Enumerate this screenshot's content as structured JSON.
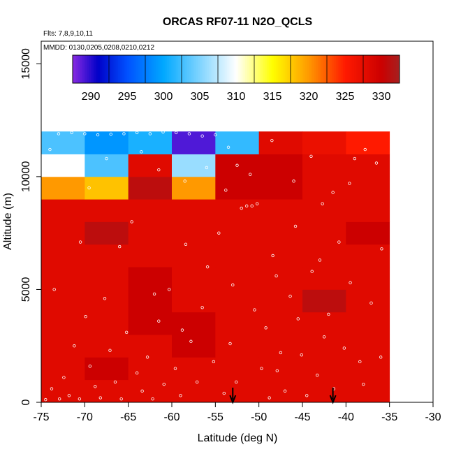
{
  "chart_data": {
    "type": "heatmap",
    "title": "ORCAS RF07-11 N2O_QCLS",
    "annotations": {
      "flights": "Flts: 7,8,9,10,11",
      "dates": "MMDD: 0130,0205,0208,0210,0212"
    },
    "xlabel": "Latitude (deg N)",
    "ylabel": "Altitude (m)",
    "xlim": [
      -75,
      -30
    ],
    "ylim": [
      0,
      16000
    ],
    "x_ticks": [
      -75,
      -70,
      -65,
      -60,
      -55,
      -50,
      -45,
      -40,
      -35,
      -30
    ],
    "y_ticks": [
      0,
      5000,
      10000,
      15000
    ],
    "grid": false,
    "colorbar": {
      "min": 287.5,
      "max": 332.5,
      "ticks": [
        290,
        295,
        300,
        305,
        310,
        315,
        320,
        325,
        330
      ],
      "placement": "top",
      "stops": [
        {
          "v": 287.5,
          "c": "#8a2be2"
        },
        {
          "v": 291.0,
          "c": "#0000c8"
        },
        {
          "v": 295.0,
          "c": "#0050ff"
        },
        {
          "v": 300.0,
          "c": "#00a8ff"
        },
        {
          "v": 305.0,
          "c": "#7fd4ff"
        },
        {
          "v": 310.0,
          "c": "#ffffff"
        },
        {
          "v": 315.0,
          "c": "#ffff00"
        },
        {
          "v": 320.0,
          "c": "#ff9900"
        },
        {
          "v": 325.0,
          "c": "#ff1a00"
        },
        {
          "v": 330.0,
          "c": "#cc0000"
        },
        {
          "v": 332.5,
          "c": "#a52020"
        }
      ]
    },
    "cell_size": {
      "dlat": 5,
      "dalt": 1000
    },
    "lat_bins": [
      -75,
      -70,
      -65,
      -60,
      -55,
      -50,
      -45,
      -40
    ],
    "alt_bins": [
      0,
      1000,
      2000,
      3000,
      4000,
      5000,
      6000,
      7000,
      8000,
      9000,
      10000,
      11000
    ],
    "cells": [
      [
        328,
        328,
        328,
        328,
        328,
        328,
        328,
        328
      ],
      [
        328,
        330,
        328,
        328,
        328,
        328,
        328,
        328
      ],
      [
        328,
        328,
        328,
        330,
        328,
        328,
        328,
        328
      ],
      [
        328,
        328,
        330,
        330,
        328,
        328,
        328,
        328
      ],
      [
        328,
        328,
        330,
        328,
        328,
        328,
        331,
        328
      ],
      [
        328,
        328,
        330,
        328,
        328,
        328,
        328,
        328
      ],
      [
        328,
        328,
        328,
        328,
        328,
        328,
        328,
        328
      ],
      [
        328,
        331,
        328,
        328,
        328,
        328,
        328,
        330
      ],
      [
        328,
        328,
        328,
        328,
        328,
        328,
        328,
        328
      ],
      [
        320,
        318,
        331,
        320,
        330,
        330,
        328,
        328
      ],
      [
        310,
        303,
        328,
        306,
        330,
        330,
        328,
        328
      ],
      [
        303,
        299,
        301,
        289,
        302,
        328,
        327,
        325
      ]
    ],
    "observations": [
      {
        "lat": -74.5,
        "alt": 120
      },
      {
        "lat": -73.8,
        "alt": 600
      },
      {
        "lat": -72.9,
        "alt": 150
      },
      {
        "lat": -72.4,
        "alt": 1100
      },
      {
        "lat": -71.8,
        "alt": 300
      },
      {
        "lat": -71.2,
        "alt": 2500
      },
      {
        "lat": -70.6,
        "alt": 150
      },
      {
        "lat": -69.9,
        "alt": 3800
      },
      {
        "lat": -69.4,
        "alt": 1600
      },
      {
        "lat": -68.8,
        "alt": 700
      },
      {
        "lat": -68.2,
        "alt": 200
      },
      {
        "lat": -67.7,
        "alt": 4600
      },
      {
        "lat": -67.1,
        "alt": 2300
      },
      {
        "lat": -66.5,
        "alt": 900
      },
      {
        "lat": -65.8,
        "alt": 150
      },
      {
        "lat": -65.2,
        "alt": 3100
      },
      {
        "lat": -64.6,
        "alt": 8000
      },
      {
        "lat": -64.0,
        "alt": 1300
      },
      {
        "lat": -63.4,
        "alt": 500
      },
      {
        "lat": -62.8,
        "alt": 2000
      },
      {
        "lat": -62.2,
        "alt": 150
      },
      {
        "lat": -61.5,
        "alt": 3600
      },
      {
        "lat": -60.9,
        "alt": 800
      },
      {
        "lat": -60.3,
        "alt": 5000
      },
      {
        "lat": -59.6,
        "alt": 1500
      },
      {
        "lat": -59.0,
        "alt": 300
      },
      {
        "lat": -58.4,
        "alt": 7000
      },
      {
        "lat": -57.8,
        "alt": 2700
      },
      {
        "lat": -57.1,
        "alt": 900
      },
      {
        "lat": -56.5,
        "alt": 4200
      },
      {
        "lat": -55.9,
        "alt": 6000
      },
      {
        "lat": -55.2,
        "alt": 1800
      },
      {
        "lat": -54.6,
        "alt": 7500
      },
      {
        "lat": -54.0,
        "alt": 400
      },
      {
        "lat": -53.3,
        "alt": 2600
      },
      {
        "lat": -53.0,
        "alt": 5200
      },
      {
        "lat": -52.6,
        "alt": 900
      },
      {
        "lat": -52.0,
        "alt": 8600
      },
      {
        "lat": -51.4,
        "alt": 8700
      },
      {
        "lat": -50.8,
        "alt": 8700
      },
      {
        "lat": -50.2,
        "alt": 8800
      },
      {
        "lat": -49.7,
        "alt": 1500
      },
      {
        "lat": -49.2,
        "alt": 3300
      },
      {
        "lat": -48.8,
        "alt": 200
      },
      {
        "lat": -48.4,
        "alt": 6500
      },
      {
        "lat": -47.9,
        "alt": 1400
      },
      {
        "lat": -47.5,
        "alt": 2200
      },
      {
        "lat": -47.0,
        "alt": 500
      },
      {
        "lat": -46.4,
        "alt": 4700
      },
      {
        "lat": -45.8,
        "alt": 7800
      },
      {
        "lat": -45.1,
        "alt": 2100
      },
      {
        "lat": -44.5,
        "alt": 300
      },
      {
        "lat": -43.9,
        "alt": 5800
      },
      {
        "lat": -43.3,
        "alt": 1200
      },
      {
        "lat": -42.7,
        "alt": 8800
      },
      {
        "lat": -42.0,
        "alt": 3900
      },
      {
        "lat": -41.4,
        "alt": 600
      },
      {
        "lat": -40.8,
        "alt": 7100
      },
      {
        "lat": -40.2,
        "alt": 2400
      },
      {
        "lat": -39.6,
        "alt": 9700
      },
      {
        "lat": -39.0,
        "alt": 10800
      },
      {
        "lat": -38.4,
        "alt": 1800
      },
      {
        "lat": -37.8,
        "alt": 11200
      },
      {
        "lat": -37.1,
        "alt": 4400
      },
      {
        "lat": -36.5,
        "alt": 10600
      },
      {
        "lat": -35.9,
        "alt": 6800
      },
      {
        "lat": -73.0,
        "alt": 11900
      },
      {
        "lat": -71.5,
        "alt": 11950
      },
      {
        "lat": -70.0,
        "alt": 11900
      },
      {
        "lat": -68.5,
        "alt": 11850
      },
      {
        "lat": -67.0,
        "alt": 11880
      },
      {
        "lat": -65.5,
        "alt": 11900
      },
      {
        "lat": -64.0,
        "alt": 11950
      },
      {
        "lat": -62.5,
        "alt": 11900
      },
      {
        "lat": -61.0,
        "alt": 11980
      },
      {
        "lat": -59.5,
        "alt": 11950
      },
      {
        "lat": -58.0,
        "alt": 11900
      },
      {
        "lat": -56.5,
        "alt": 11800
      },
      {
        "lat": -55.0,
        "alt": 11850
      },
      {
        "lat": -53.5,
        "alt": 11300
      },
      {
        "lat": -52.5,
        "alt": 10500
      },
      {
        "lat": -74.0,
        "alt": 11200
      },
      {
        "lat": -72.0,
        "alt": 10200
      },
      {
        "lat": -69.5,
        "alt": 9500
      },
      {
        "lat": -67.5,
        "alt": 10800
      },
      {
        "lat": -63.5,
        "alt": 11100
      },
      {
        "lat": -61.5,
        "alt": 10300
      },
      {
        "lat": -58.5,
        "alt": 9800
      },
      {
        "lat": -56.0,
        "alt": 10400
      },
      {
        "lat": -53.8,
        "alt": 9400
      },
      {
        "lat": -51.0,
        "alt": 10100
      },
      {
        "lat": -48.5,
        "alt": 11600
      },
      {
        "lat": -46.0,
        "alt": 9800
      },
      {
        "lat": -44.0,
        "alt": 10900
      },
      {
        "lat": -41.5,
        "alt": 9300
      },
      {
        "lat": -43.0,
        "alt": 6300
      },
      {
        "lat": -66.0,
        "alt": 6900
      },
      {
        "lat": -70.5,
        "alt": 7100
      },
      {
        "lat": -73.5,
        "alt": 5000
      },
      {
        "lat": -62.0,
        "alt": 4800
      },
      {
        "lat": -58.8,
        "alt": 3200
      },
      {
        "lat": -50.5,
        "alt": 4100
      },
      {
        "lat": -48.0,
        "alt": 5600
      },
      {
        "lat": -45.5,
        "alt": 3700
      },
      {
        "lat": -42.5,
        "alt": 2900
      },
      {
        "lat": -39.5,
        "alt": 5300
      },
      {
        "lat": -36.0,
        "alt": 2000
      },
      {
        "lat": -38.0,
        "alt": 800
      }
    ],
    "markers": [
      {
        "lat": -53.0,
        "label": "arrow"
      },
      {
        "lat": -41.5,
        "label": "arrow"
      }
    ]
  }
}
